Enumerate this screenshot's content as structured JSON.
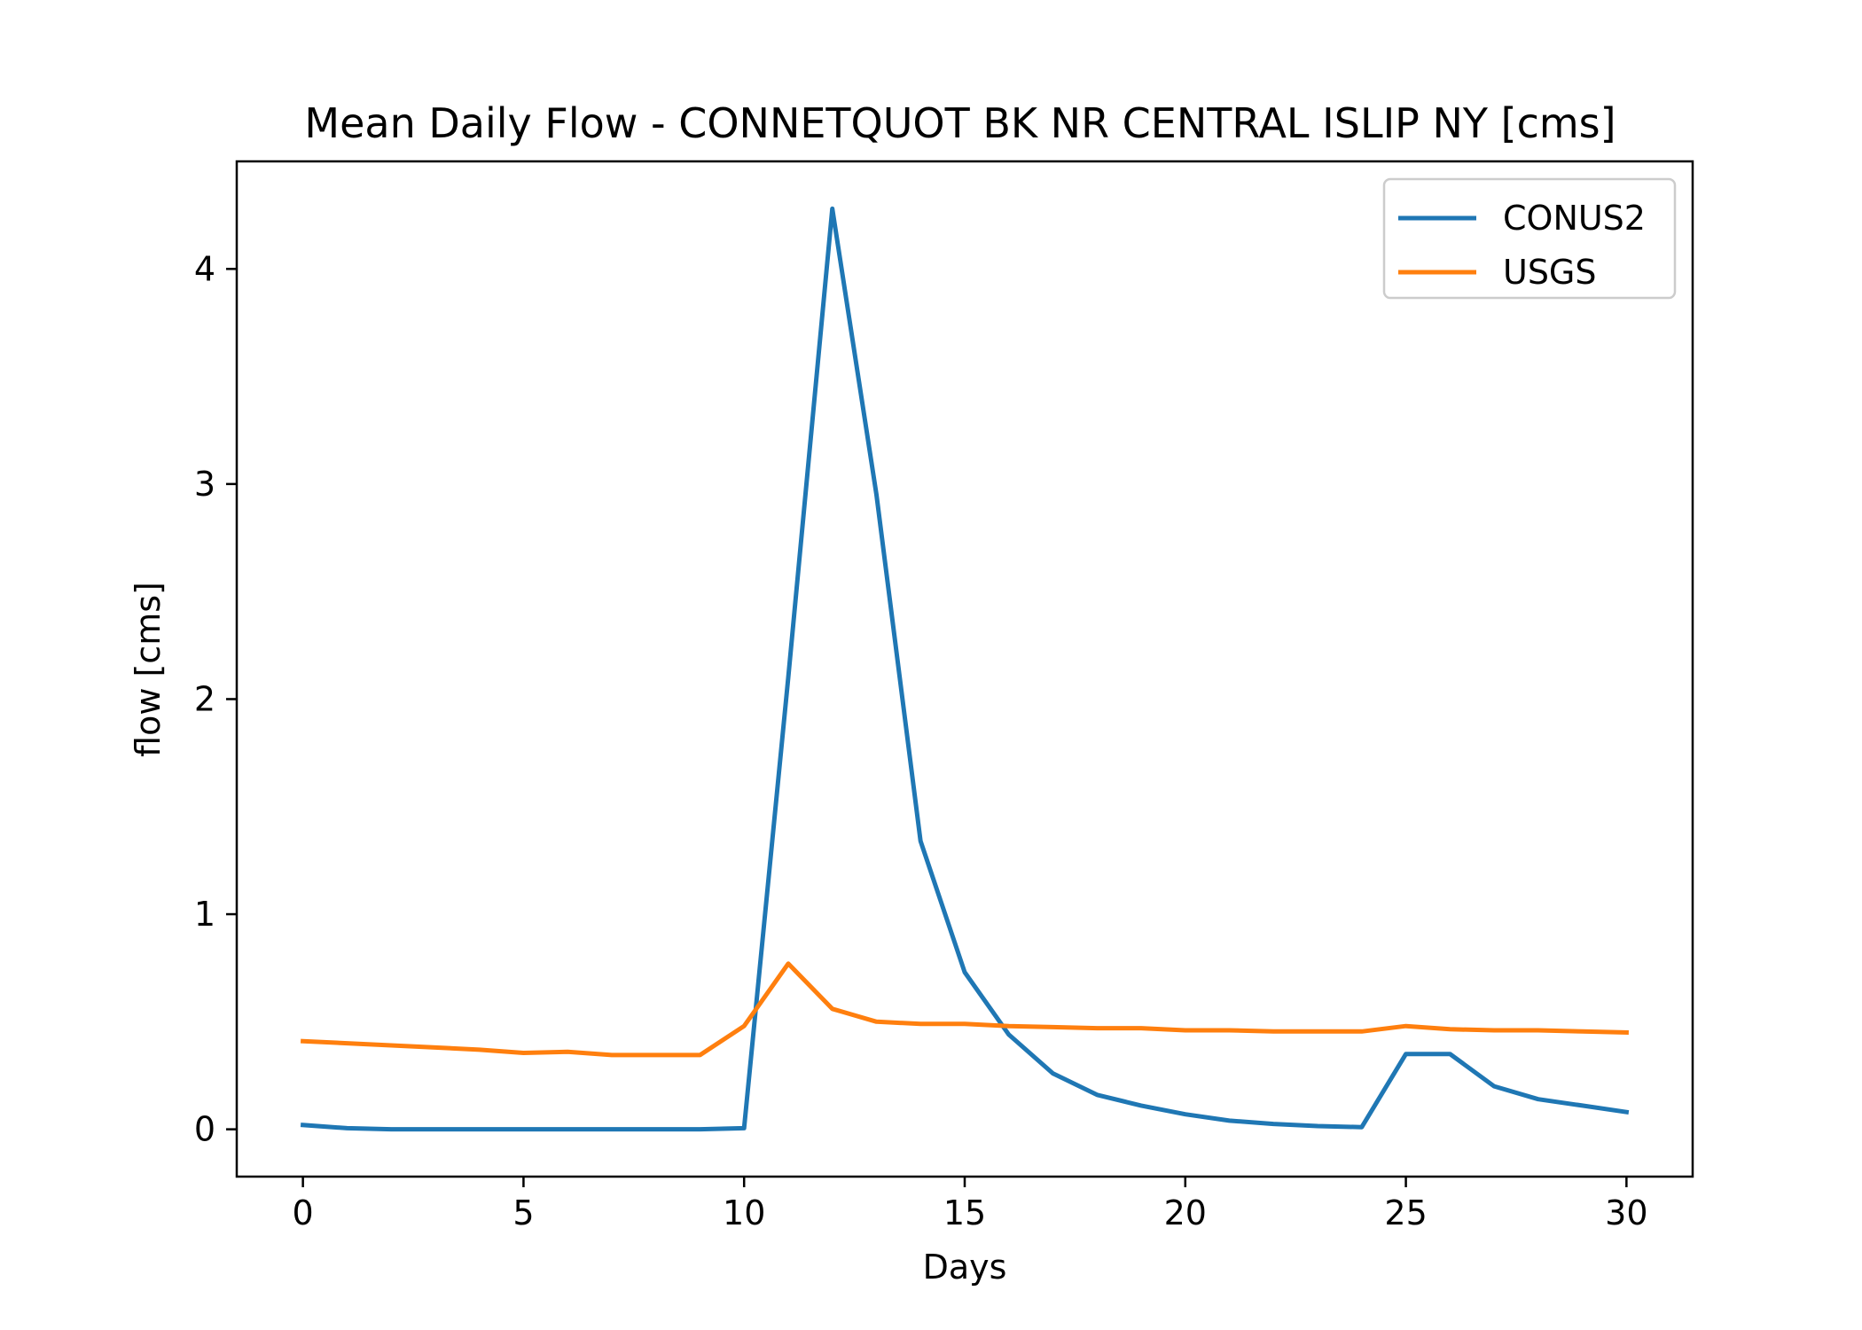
{
  "chart_data": {
    "type": "line",
    "title": "Mean Daily Flow - CONNETQUOT BK NR CENTRAL ISLIP NY [cms]",
    "xlabel": "Days",
    "ylabel": "flow [cms]",
    "xlim": [
      -1.5,
      31.5
    ],
    "ylim": [
      -0.22,
      4.5
    ],
    "xticks": [
      0,
      5,
      10,
      15,
      20,
      25,
      30
    ],
    "yticks": [
      0,
      1,
      2,
      3,
      4
    ],
    "grid": false,
    "legend_position": "top-right",
    "x": [
      0,
      1,
      2,
      3,
      4,
      5,
      6,
      7,
      8,
      9,
      10,
      11,
      12,
      13,
      14,
      15,
      16,
      17,
      18,
      19,
      20,
      21,
      22,
      23,
      24,
      25,
      26,
      27,
      28,
      29,
      30
    ],
    "series": [
      {
        "name": "CONUS2",
        "color": "#1f77b4",
        "values": [
          0.02,
          0.005,
          0.0,
          0.0,
          0.0,
          0.0,
          0.0,
          0.0,
          0.0,
          0.0,
          0.005,
          2.1,
          4.28,
          2.95,
          1.34,
          0.73,
          0.44,
          0.26,
          0.16,
          0.11,
          0.07,
          0.04,
          0.025,
          0.015,
          0.01,
          0.35,
          0.35,
          0.2,
          0.14,
          0.11,
          0.08
        ]
      },
      {
        "name": "USGS",
        "color": "#ff7f0e",
        "values": [
          0.41,
          0.4,
          0.39,
          0.38,
          0.37,
          0.355,
          0.36,
          0.345,
          0.345,
          0.345,
          0.48,
          0.77,
          0.56,
          0.5,
          0.49,
          0.49,
          0.48,
          0.475,
          0.47,
          0.47,
          0.46,
          0.46,
          0.455,
          0.455,
          0.455,
          0.48,
          0.465,
          0.46,
          0.46,
          0.455,
          0.45
        ]
      }
    ]
  }
}
